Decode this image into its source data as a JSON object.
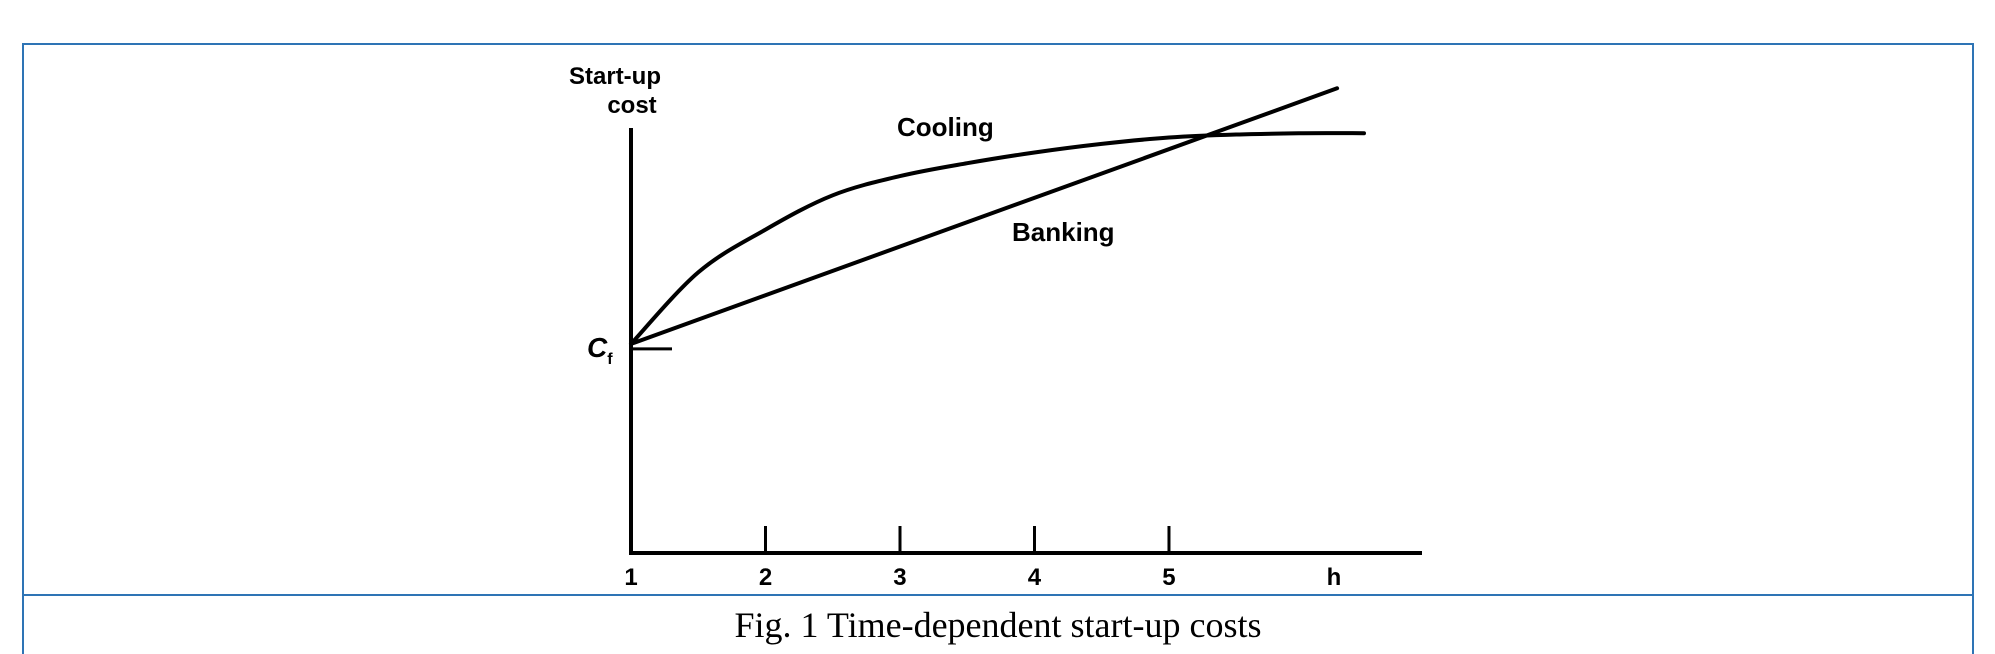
{
  "caption": "Fig. 1 Time-dependent start-up costs",
  "chart_data": {
    "type": "line",
    "ylabel_line1": "Start-up",
    "ylabel_line2": "cost",
    "xlabel": "h",
    "y_intercept_label": "C",
    "y_intercept_subscript": "f",
    "x_ticks": [
      "1",
      "2",
      "3",
      "4",
      "5"
    ],
    "xlim": [
      1,
      6.45
    ],
    "ylim": [
      0,
      1.1
    ],
    "series": [
      {
        "name": "Cooling",
        "x": [
          1,
          1.5,
          2,
          2.5,
          3,
          3.5,
          4,
          4.5,
          5,
          5.5,
          6,
          6.45
        ],
        "y": [
          0.493,
          0.66,
          0.76,
          0.84,
          0.885,
          0.915,
          0.94,
          0.96,
          0.975,
          0.982,
          0.985,
          0.985
        ]
      },
      {
        "name": "Banking",
        "x": [
          1,
          6.25
        ],
        "y": [
          0.493,
          1.09
        ]
      }
    ],
    "colors": {
      "line": "#000000",
      "frame": "#2e74b5"
    }
  }
}
